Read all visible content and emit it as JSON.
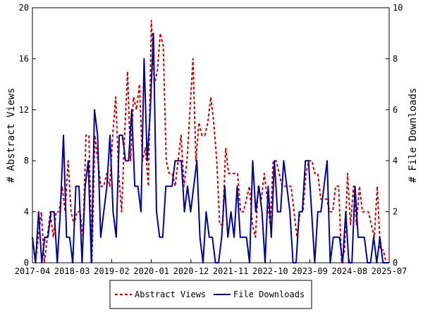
{
  "chart_data": {
    "type": "line",
    "ylabel_left": "# Abstract Views",
    "ylabel_right": "# File Downloads",
    "ylim_left": [
      0,
      20
    ],
    "ylim_right": [
      0,
      10
    ],
    "y_ticks_left": [
      "0",
      "4",
      "8",
      "12",
      "16",
      "20"
    ],
    "y_ticks_right": [
      "0",
      "2",
      "4",
      "6",
      "8",
      "10"
    ],
    "x_ticks": [
      "2017-04",
      "2018-03",
      "2019-02",
      "2020-01",
      "2020-12",
      "2021-11",
      "2022-10",
      "2023-09",
      "2024-08",
      "2025-07"
    ],
    "grid": false,
    "legend_position": "bottom",
    "series": [
      {
        "name": "Abstract Views",
        "axis": "left",
        "color": "#cc0000",
        "style": "dashed",
        "values": [
          2,
          0,
          2,
          4,
          0,
          2,
          4,
          2,
          4,
          4,
          6,
          4,
          8,
          4,
          3,
          4,
          4,
          2,
          10,
          10,
          0,
          10,
          8,
          6,
          6,
          7,
          6,
          10,
          13,
          7,
          4,
          10,
          15,
          8,
          13,
          12,
          14,
          8,
          9,
          6,
          19,
          14,
          15,
          18,
          17,
          8,
          7,
          7,
          6,
          8,
          10,
          6,
          8,
          12,
          16,
          8,
          11,
          10,
          10,
          11,
          13,
          11,
          8,
          3,
          3,
          9,
          7,
          7,
          7,
          7,
          4,
          4,
          5,
          6,
          3,
          2,
          6,
          5,
          7,
          5,
          3,
          8,
          8,
          7,
          6,
          6,
          6,
          6,
          4,
          2,
          4,
          4,
          7,
          8,
          8,
          7,
          7,
          5,
          5,
          5,
          4,
          4,
          6,
          6,
          0,
          1,
          7,
          3,
          6,
          3,
          6,
          4,
          4,
          4,
          3,
          2,
          6,
          1,
          1,
          0,
          0
        ]
      },
      {
        "name": "File Downloads",
        "axis": "left",
        "color": "#00009c",
        "style": "solid",
        "values": [
          2,
          0,
          4,
          0,
          2,
          2,
          4,
          4,
          0,
          4,
          10,
          2,
          2,
          0,
          6,
          6,
          0,
          6,
          8,
          0,
          12,
          10,
          2,
          4,
          6,
          10,
          4,
          2,
          10,
          10,
          8,
          8,
          12,
          6,
          6,
          4,
          16,
          8,
          12,
          18,
          4,
          2,
          2,
          6,
          6,
          6,
          8,
          8,
          8,
          4,
          6,
          4,
          6,
          8,
          2,
          0,
          4,
          2,
          2,
          0,
          0,
          2,
          6,
          2,
          4,
          2,
          6,
          2,
          2,
          2,
          0,
          8,
          4,
          6,
          4,
          0,
          6,
          2,
          8,
          4,
          4,
          8,
          6,
          4,
          0,
          0,
          4,
          4,
          8,
          8,
          4,
          0,
          4,
          4,
          6,
          8,
          0,
          2,
          2,
          2,
          0,
          4,
          0,
          0,
          6,
          2,
          2,
          2,
          0,
          0,
          2,
          0,
          2,
          0,
          0,
          0
        ]
      }
    ]
  }
}
